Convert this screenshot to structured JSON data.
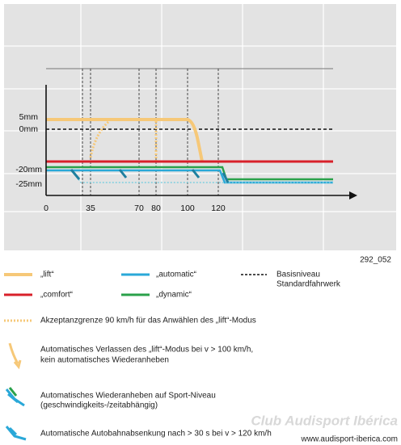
{
  "chart": {
    "y_labels": [
      "5mm",
      "0mm",
      "-20mm",
      "-25mm"
    ],
    "x_labels": [
      "0",
      "35",
      "70",
      "80",
      "100",
      "120"
    ],
    "figure_id": "292_052"
  },
  "legend": [
    {
      "label": "„lift“"
    },
    {
      "label": "„automatic“"
    },
    {
      "label": "Basisniveau",
      "label2": "Standardfahrwerk"
    },
    {
      "label": "„comfort“"
    },
    {
      "label": "„dynamic“"
    }
  ],
  "notes": [
    {
      "lines": [
        "Akzeptanzgrenze 90 km/h für das Anwählen des „lift“-Modus"
      ]
    },
    {
      "lines": [
        "Automatisches Verlassen des „lift“-Modus bei v > 100 km/h,",
        "kein automatisches Wiederanheben"
      ]
    },
    {
      "lines": [
        "Automatisches Wiederanheben auf Sport-Niveau",
        "(geschwindigkeits-/zeitabhängig)"
      ]
    },
    {
      "lines": [
        "Automatische Autobahnabsenkung nach > 30 s bei v > 120 km/h"
      ]
    }
  ],
  "watermark": [
    "Club Audisport Ibérica",
    "www.audisport-iberica.com"
  ]
}
